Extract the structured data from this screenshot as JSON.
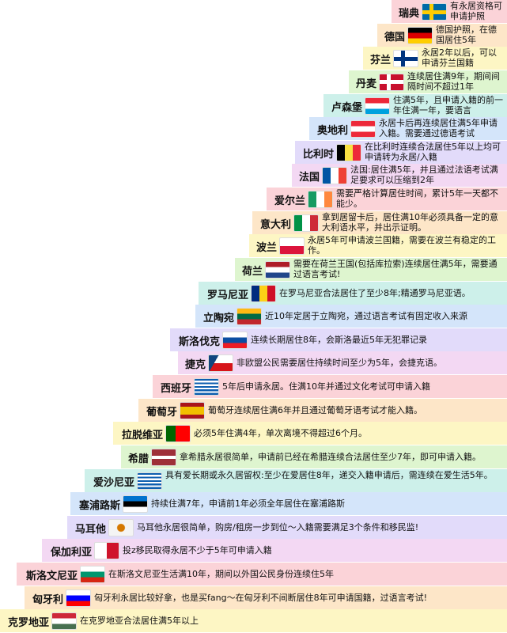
{
  "rows": [
    {
      "country": "瑞典",
      "text": "有永居资格可申请护照"
    },
    {
      "country": "德国",
      "text": "德国护照，在德国居住5年"
    },
    {
      "country": "芬兰",
      "text": "永居2年以后，可以申请芬兰国籍"
    },
    {
      "country": "丹麦",
      "text": "连续居住满9年，期间间隔时间不超过1年"
    },
    {
      "country": "卢森堡",
      "text": "住满5年，且申请入籍的前一年住满一年，要语言"
    },
    {
      "country": "奥地利",
      "text": "永居卡后再连续居住满5年申请入籍。需要通过德语考试"
    },
    {
      "country": "比利时",
      "text": "在比利时连续合法居住5年以上均可申请转为永居/入籍"
    },
    {
      "country": "法国",
      "text": "法国:居住满5年，并且通过法语考试满足要求可以压缩到2年"
    },
    {
      "country": "爱尔兰",
      "text": "需要严格计算居住时间，累计5年一天都不能少。"
    },
    {
      "country": "意大利",
      "text": "拿到居留卡后，居住满10年必须具备一定的意大利语水平，并出示证明。"
    },
    {
      "country": "波兰",
      "text": "永居5年可申请波兰国籍，需要在波兰有稳定的工作。"
    },
    {
      "country": "荷兰",
      "text": "需要在荷兰王国(包括库拉索)连续居住满5年，需要通过语言考试!"
    },
    {
      "country": "罗马尼亚",
      "text": "在罗马尼亚合法居住了至少8年;精通罗马尼亚语。"
    },
    {
      "country": "立陶宛",
      "text": "近10年定居于立陶宛，通过语言考试有固定收入来源"
    },
    {
      "country": "斯洛伐克",
      "text": "连续长期居住8年，会斯洛最近5年无犯罪记录"
    },
    {
      "country": "捷克",
      "text": "非欧盟公民需要居住持续时间至少为5年，会捷克语。"
    },
    {
      "country": "西班牙",
      "text": "5年后申请永居。住满10年并通过文化考试可申请入籍"
    },
    {
      "country": "葡萄牙",
      "text": "葡萄牙连续居住满6年并且通过葡萄牙语考试才能入籍。"
    },
    {
      "country": "拉脱维亚",
      "text": "必须5年住满4年，单次离境不得超过6个月。"
    },
    {
      "country": "希腊",
      "text": "拿希腊永居很简单，申请前已经在希腊连续合法居住至少7年，即可申请入籍。"
    },
    {
      "country": "爱沙尼亚",
      "text": "具有爱长期或永久居留权:至少在爱居住8年，递交入籍申请后，需连续在爱生活5年。"
    },
    {
      "country": "塞浦路斯",
      "text": "持续住满7年，申请前1年必须全年居住在塞浦路斯"
    },
    {
      "country": "马耳他",
      "text": "马耳他永居很简单，购房/租房一步到位～入籍需要满足3个条件和移民监!"
    },
    {
      "country": "保加利亚",
      "text": "投z移民取得永居不少于5年可申请入籍"
    },
    {
      "country": "斯洛文尼亚",
      "text": "在斯洛文尼亚生活满10年，期间以外国公民身份连续住5年"
    },
    {
      "country": "匈牙利",
      "text": "匈牙利永居比较好拿，也是买fang～在匈牙利不间断居住8年可申请国籍，过语言考试!"
    },
    {
      "country": "克罗地亚",
      "text": "在克罗地亚合法居住满5年以上"
    }
  ]
}
